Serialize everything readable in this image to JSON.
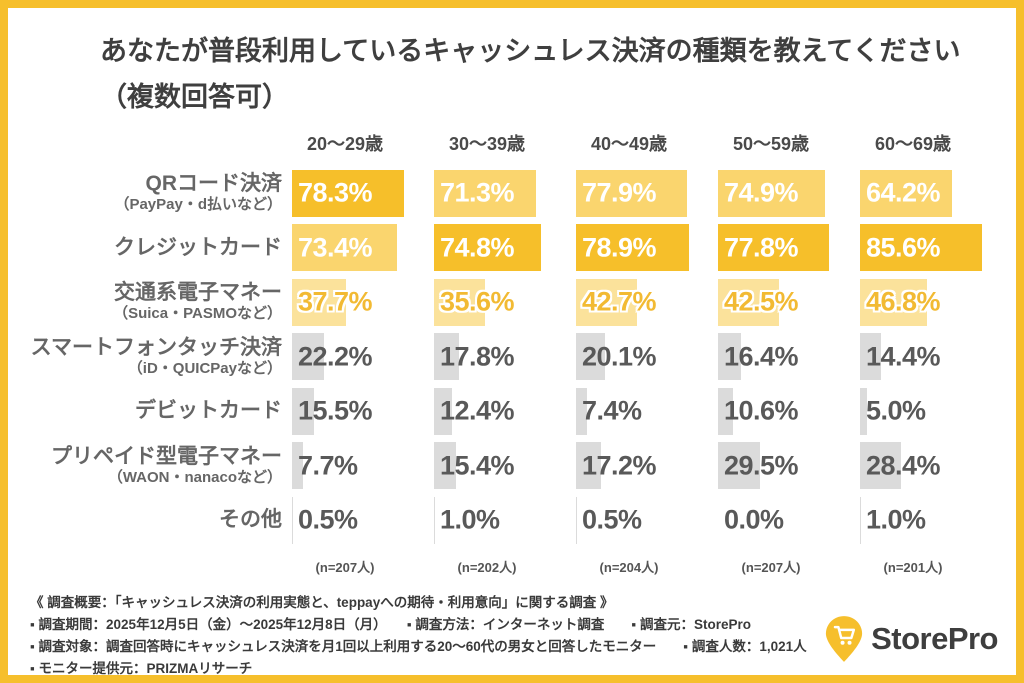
{
  "title": {
    "line1": "あなたが普段利用しているキャッシュレス決済の種類を教えてください",
    "line2": "（複数回答可）"
  },
  "chart_data": {
    "type": "bar",
    "title": "あなたが普段利用しているキャッシュレス決済の種類を教えてください（複数回答可）",
    "orientation": "horizontal",
    "unit": "%",
    "age_groups": [
      "20〜29歳",
      "30〜39歳",
      "40〜49歳",
      "50〜59歳",
      "60〜69歳"
    ],
    "sample_sizes": [
      "(n=207人)",
      "(n=202人)",
      "(n=204人)",
      "(n=207人)",
      "(n=201人)"
    ],
    "categories": [
      {
        "label": "QRコード決済",
        "sublabel": "（PayPay・d払いなど）",
        "values": [
          78.3,
          71.3,
          77.9,
          74.9,
          64.2
        ],
        "tiers": [
          1,
          2,
          2,
          2,
          2
        ]
      },
      {
        "label": "クレジットカード",
        "sublabel": "",
        "values": [
          73.4,
          74.8,
          78.9,
          77.8,
          85.6
        ],
        "tiers": [
          2,
          1,
          1,
          1,
          1
        ]
      },
      {
        "label": "交通系電子マネー",
        "sublabel": "（Suica・PASMOなど）",
        "values": [
          37.7,
          35.6,
          42.7,
          42.5,
          46.8
        ],
        "tiers": [
          3,
          3,
          3,
          3,
          3
        ]
      },
      {
        "label": "スマートフォンタッチ決済",
        "sublabel": "（iD・QUICPayなど）",
        "values": [
          22.2,
          17.8,
          20.1,
          16.4,
          14.4
        ],
        "tiers": [
          4,
          4,
          4,
          4,
          4
        ]
      },
      {
        "label": "デビットカード",
        "sublabel": "",
        "values": [
          15.5,
          12.4,
          7.4,
          10.6,
          5.0
        ],
        "tiers": [
          4,
          4,
          4,
          4,
          4
        ]
      },
      {
        "label": "プリペイド型電子マネー",
        "sublabel": "（WAON・nanacoなど）",
        "values": [
          7.7,
          15.4,
          17.2,
          29.5,
          28.4
        ],
        "tiers": [
          4,
          4,
          4,
          4,
          4
        ]
      },
      {
        "label": "その他",
        "sublabel": "",
        "values": [
          0.5,
          1.0,
          0.5,
          0.0,
          1.0
        ],
        "tiers": [
          4,
          4,
          4,
          4,
          4
        ]
      }
    ],
    "tier_colors": {
      "1": "#F6BF2A",
      "2": "#FAD56E",
      "3": "#FBE29B",
      "4": "#DBDBDB"
    },
    "value_text_colors": {
      "1": "#FFFFFF",
      "2": "#FFFFFF",
      "3": "#F2BA33",
      "4": "#595959"
    },
    "legend": "dark yellow = rank 1 in age group, medium yellow = rank 2, pale yellow = rank 3, gray = rank 4+"
  },
  "footer": {
    "lines": [
      "《 調査概要：「キャッシュレス決済の利用実態と、teppayへの期待・利用意向」に関する調査 》",
      "▪ 調査期間：2025年12月5日（金）〜2025年12月8日（月）　　▪ 調査方法：インターネット調査　　▪ 調査元：StorePro",
      "▪ 調査対象：調査回答時にキャッシュレス決済を月1回以上利用する20〜60代の男女と回答したモニター　　▪ 調査人数：1,021人",
      "▪ モニター提供元：PRIZMAリサーチ"
    ]
  },
  "logo": {
    "text": "StorePro",
    "pin_color": "#F6BF2C",
    "icon": "cart-pin-icon"
  },
  "page": {
    "border_color": "#F6BF2C",
    "background": "#FFFFFF"
  }
}
